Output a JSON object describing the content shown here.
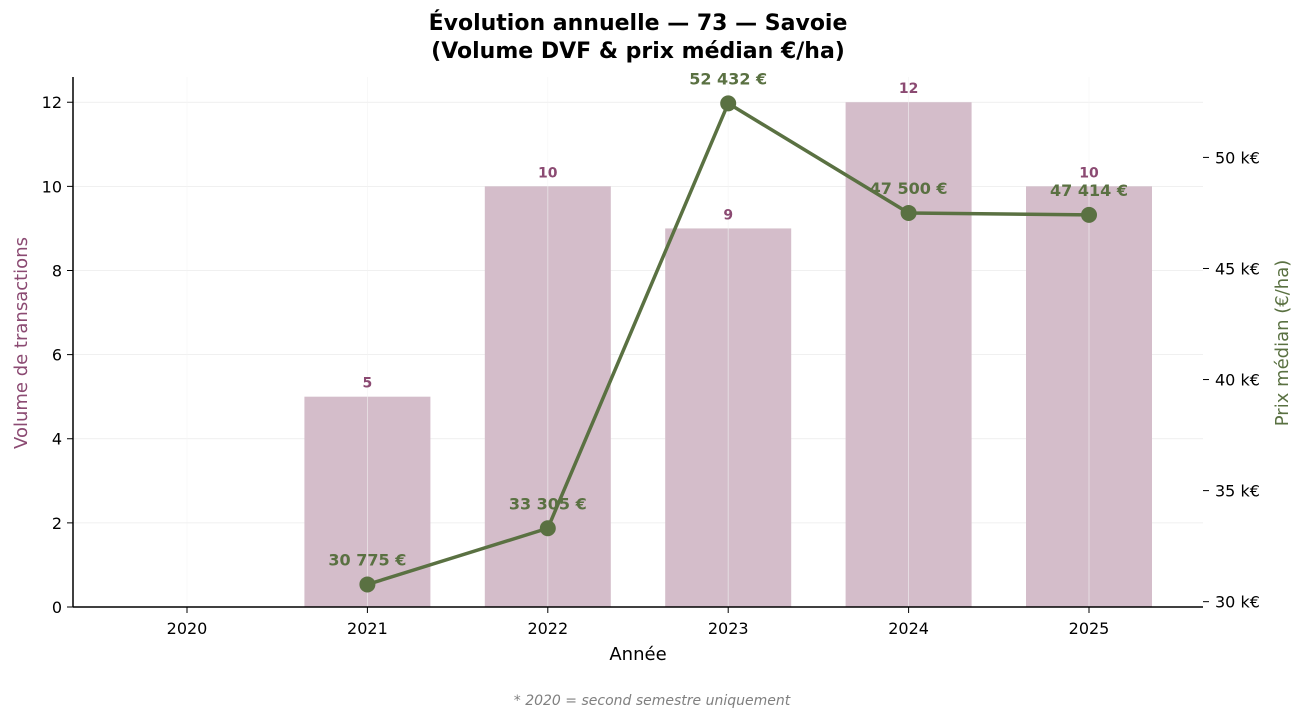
{
  "chart_data": {
    "type": "bar",
    "title_line1": "Évolution annuelle — 73 — Savoie",
    "title_line2": "(Volume DVF & prix médian €/ha)",
    "xlabel": "Année",
    "ylabel_left": "Volume de transactions",
    "ylabel_right": "Prix médian (€/ha)",
    "categories": [
      "2020",
      "2021",
      "2022",
      "2023",
      "2024",
      "2025"
    ],
    "volume": {
      "values": [
        0,
        5,
        10,
        9,
        12,
        10
      ],
      "labels": [
        "",
        "5",
        "10",
        "9",
        "12",
        "10"
      ],
      "color": "#d4bdca",
      "label_color": "#8b4a72"
    },
    "price": {
      "values": [
        null,
        30775,
        33305,
        52432,
        47500,
        47414
      ],
      "labels": [
        "",
        "30 775 €",
        "33 305 €",
        "52 432 €",
        "47 500 €",
        "47 414 €"
      ],
      "color": "#5a7142"
    },
    "ylim_left": [
      0,
      12.6
    ],
    "yticks_left": [
      "0",
      "2",
      "4",
      "6",
      "8",
      "10",
      "12"
    ],
    "ylim_right": [
      29760,
      53620
    ],
    "yticks_right": [
      30000,
      35000,
      40000,
      45000,
      50000
    ],
    "yticks_right_labels": [
      "30 k€",
      "35 k€",
      "40 k€",
      "45 k€",
      "50 k€"
    ],
    "grid": true,
    "ylabel_left_color": "#8b4a72",
    "ylabel_right_color": "#5a7142"
  },
  "footnote": "* 2020 = second semestre uniquement"
}
